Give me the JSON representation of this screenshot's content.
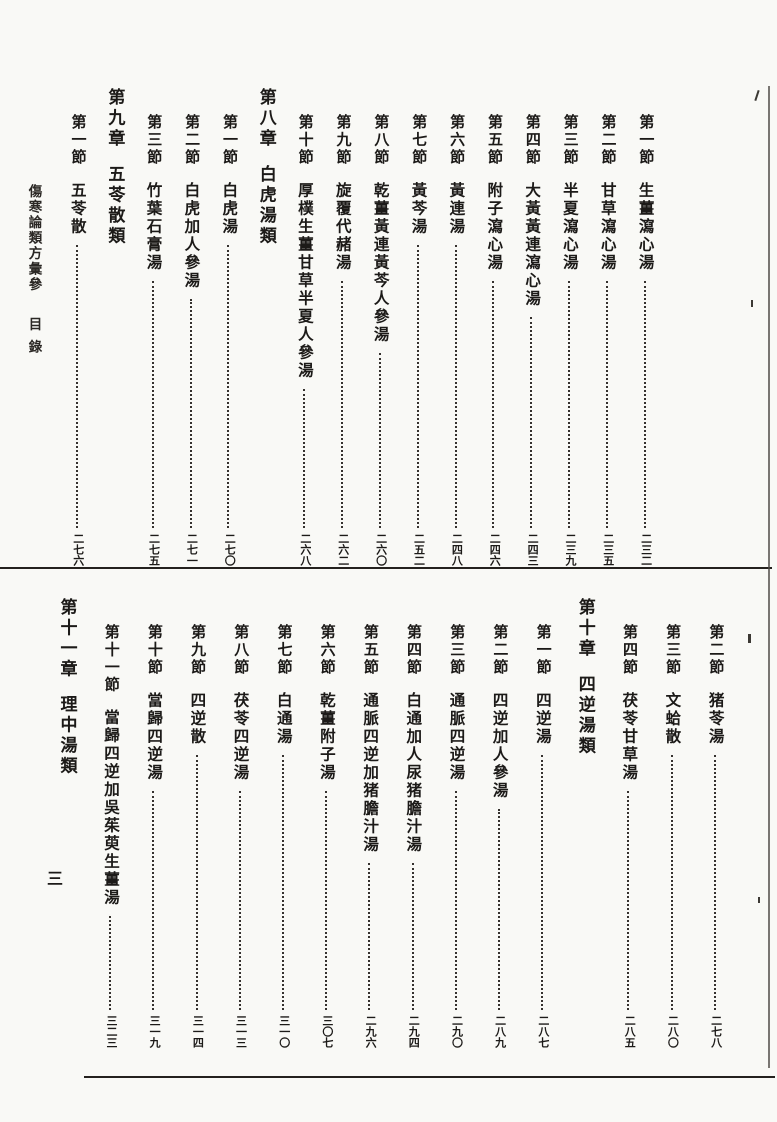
{
  "page": {
    "book_title": "傷寒論類方彙參",
    "toc_label": "目錄",
    "folio": "三",
    "ink_color": "#1c1a18",
    "paper_color": "#f9f9f6"
  },
  "top_block": {
    "entries": [
      {
        "type": "section",
        "label": "第一節",
        "title": "生薑瀉心湯",
        "page": "二三二"
      },
      {
        "type": "section",
        "label": "第二節",
        "title": "甘草瀉心湯",
        "page": "二三五"
      },
      {
        "type": "section",
        "label": "第三節",
        "title": "半夏瀉心湯",
        "page": "二三九"
      },
      {
        "type": "section",
        "label": "第四節",
        "title": "大黃黃連瀉心湯",
        "page": "二四三"
      },
      {
        "type": "section",
        "label": "第五節",
        "title": "附子瀉心湯",
        "page": "二四六"
      },
      {
        "type": "section",
        "label": "第六節",
        "title": "黃連湯",
        "page": "二四八"
      },
      {
        "type": "section",
        "label": "第七節",
        "title": "黃芩湯",
        "page": "二五二"
      },
      {
        "type": "section",
        "label": "第八節",
        "title": "乾薑黃連黃芩人參湯",
        "page": "二六〇"
      },
      {
        "type": "section",
        "label": "第九節",
        "title": "旋覆代赭湯",
        "page": "二六二"
      },
      {
        "type": "section",
        "label": "第十節",
        "title": "厚樸生薑甘草半夏人參湯",
        "page": "二六八"
      },
      {
        "type": "chapter",
        "label": "第八章",
        "title": "白虎湯類",
        "page": ""
      },
      {
        "type": "section",
        "label": "第一節",
        "title": "白虎湯",
        "page": "二七〇"
      },
      {
        "type": "section",
        "label": "第二節",
        "title": "白虎加人參湯",
        "page": "二七一"
      },
      {
        "type": "section",
        "label": "第三節",
        "title": "竹葉石膏湯",
        "page": "二七五"
      },
      {
        "type": "chapter",
        "label": "第九章",
        "title": "五苓散類",
        "page": ""
      },
      {
        "type": "section",
        "label": "第一節",
        "title": "五苓散",
        "page": "二七六"
      }
    ]
  },
  "bottom_block": {
    "entries": [
      {
        "type": "section",
        "label": "第二節",
        "title": "猪苓湯",
        "page": "二七八"
      },
      {
        "type": "section",
        "label": "第三節",
        "title": "文蛤散",
        "page": "二八〇"
      },
      {
        "type": "section",
        "label": "第四節",
        "title": "茯苓甘草湯",
        "page": "二八五"
      },
      {
        "type": "chapter",
        "label": "第十章",
        "title": "四逆湯類",
        "page": ""
      },
      {
        "type": "section",
        "label": "第一節",
        "title": "四逆湯",
        "page": "二八七"
      },
      {
        "type": "section",
        "label": "第二節",
        "title": "四逆加人參湯",
        "page": "二八九"
      },
      {
        "type": "section",
        "label": "第三節",
        "title": "通脈四逆湯",
        "page": "二九〇"
      },
      {
        "type": "section",
        "label": "第四節",
        "title": "白通加人尿猪膽汁湯",
        "page": "二九四"
      },
      {
        "type": "section",
        "label": "第五節",
        "title": "通脈四逆加猪膽汁湯",
        "page": "二九六"
      },
      {
        "type": "section",
        "label": "第六節",
        "title": "乾薑附子湯",
        "page": "三〇七"
      },
      {
        "type": "section",
        "label": "第七節",
        "title": "白通湯",
        "page": "三一〇"
      },
      {
        "type": "section",
        "label": "第八節",
        "title": "茯苓四逆湯",
        "page": "三一三"
      },
      {
        "type": "section",
        "label": "第九節",
        "title": "四逆散",
        "page": "三一四"
      },
      {
        "type": "section",
        "label": "第十節",
        "title": "當歸四逆湯",
        "page": "三一九"
      },
      {
        "type": "section",
        "label": "第十一節",
        "title": "當歸四逆加吳茱萸生薑湯",
        "page": "三二三"
      },
      {
        "type": "chapter",
        "label": "第十一章",
        "title": "理中湯類",
        "page": ""
      }
    ]
  }
}
